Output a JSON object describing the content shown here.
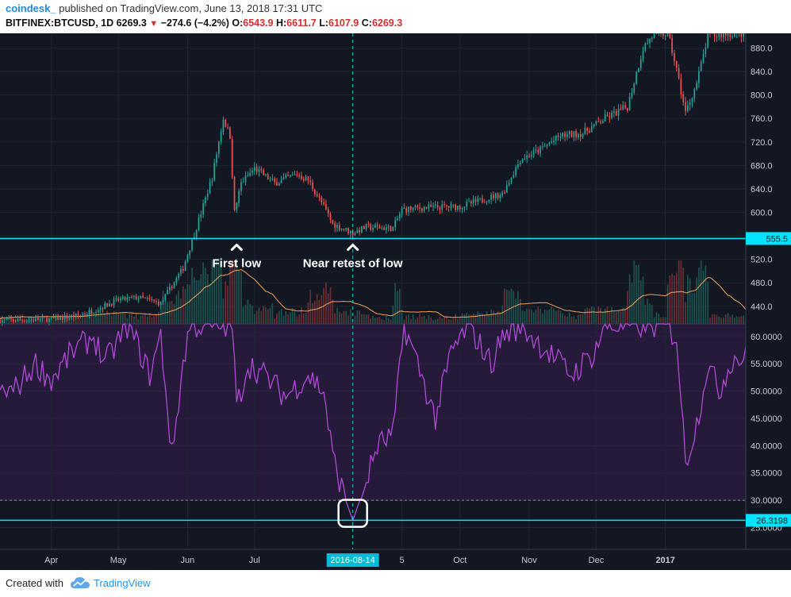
{
  "header": {
    "author": "coindesk_",
    "published": "published on TradingView.com, June 13, 2018 17:31 UTC",
    "symbol": "BITFINEX:BTCUSD, 1D",
    "last": "6269.3",
    "change_arrow": "▼",
    "change": "−274.6 (−4.2%)",
    "o_label": "O:",
    "o": "6543.9",
    "h_label": "H:",
    "h": "6611.7",
    "l_label": "L:",
    "l": "6107.9",
    "c_label": "C:",
    "c": "6269.3"
  },
  "footer": {
    "created_with": "Created with",
    "brand": "TradingView",
    "logo_icon": "tradingview-cloud-icon"
  },
  "colors": {
    "background": "#131722",
    "rsi_band": "#251a3a",
    "up": "#26a69a",
    "down": "#ef5350",
    "rsi_line": "#b04ad6",
    "support_line": "#00e5ff",
    "axis_text": "#c7cad4",
    "volume_ma": "#f0a35a"
  },
  "chart_data": {
    "type": "line",
    "price_panel": {
      "ylim": [
        410,
        905
      ],
      "yticks": [
        440,
        480,
        520,
        560,
        600,
        640,
        680,
        720,
        760,
        800,
        840,
        880
      ],
      "tick_labels": [
        "440.0",
        "480.0",
        "520.0",
        "560.0",
        "600.0",
        "640.0",
        "680.0",
        "720.0",
        "760.0",
        "800.0",
        "840.0",
        "880.0"
      ],
      "support": 555.5,
      "support_label": "555.5",
      "close_path": [
        {
          "date": "2016-03-15",
          "close": 416
        },
        {
          "date": "2016-04-01",
          "close": 418
        },
        {
          "date": "2016-04-15",
          "close": 425
        },
        {
          "date": "2016-05-01",
          "close": 451
        },
        {
          "date": "2016-05-10",
          "close": 455
        },
        {
          "date": "2016-05-20",
          "close": 445
        },
        {
          "date": "2016-05-30",
          "close": 505
        },
        {
          "date": "2016-06-05",
          "close": 575
        },
        {
          "date": "2016-06-12",
          "close": 660
        },
        {
          "date": "2016-06-17",
          "close": 760
        },
        {
          "date": "2016-06-20",
          "close": 730
        },
        {
          "date": "2016-06-22",
          "close": 600
        },
        {
          "date": "2016-06-25",
          "close": 650
        },
        {
          "date": "2016-07-01",
          "close": 675
        },
        {
          "date": "2016-07-10",
          "close": 650
        },
        {
          "date": "2016-07-20",
          "close": 665
        },
        {
          "date": "2016-07-25",
          "close": 655
        },
        {
          "date": "2016-08-01",
          "close": 610
        },
        {
          "date": "2016-08-05",
          "close": 580
        },
        {
          "date": "2016-08-14",
          "close": 565
        },
        {
          "date": "2016-08-20",
          "close": 575
        },
        {
          "date": "2016-09-01",
          "close": 573
        },
        {
          "date": "2016-09-05",
          "close": 605
        },
        {
          "date": "2016-09-15",
          "close": 608
        },
        {
          "date": "2016-10-01",
          "close": 610
        },
        {
          "date": "2016-10-10",
          "close": 620
        },
        {
          "date": "2016-10-20",
          "close": 632
        },
        {
          "date": "2016-10-28",
          "close": 690
        },
        {
          "date": "2016-11-05",
          "close": 705
        },
        {
          "date": "2016-11-15",
          "close": 730
        },
        {
          "date": "2016-11-25",
          "close": 735
        },
        {
          "date": "2016-12-05",
          "close": 760
        },
        {
          "date": "2016-12-15",
          "close": 780
        },
        {
          "date": "2016-12-22",
          "close": 880
        },
        {
          "date": "2016-12-26",
          "close": 900
        },
        {
          "date": "2017-01-02",
          "close": 905
        },
        {
          "date": "2017-01-05",
          "close": 860
        },
        {
          "date": "2017-01-10",
          "close": 770
        },
        {
          "date": "2017-01-15",
          "close": 820
        },
        {
          "date": "2017-01-20",
          "close": 900
        },
        {
          "date": "2017-01-31",
          "close": 905
        }
      ]
    },
    "rsi_panel": {
      "ylim": [
        21,
        62.3
      ],
      "yticks": [
        25,
        30,
        35,
        40,
        45,
        50,
        55,
        60
      ],
      "tick_labels": [
        "25.0000",
        "30.0000",
        "35.0000",
        "40.0000",
        "45.0000",
        "50.0000",
        "55.0000",
        "60.0000"
      ],
      "band": [
        30,
        70
      ],
      "support": 26.3198,
      "support_label": "26.3198",
      "rsi": [
        {
          "date": "2016-03-15",
          "value": 50
        },
        {
          "date": "2016-03-25",
          "value": 55
        },
        {
          "date": "2016-04-01",
          "value": 52
        },
        {
          "date": "2016-04-10",
          "value": 57
        },
        {
          "date": "2016-04-20",
          "value": 60
        },
        {
          "date": "2016-04-25",
          "value": 55
        },
        {
          "date": "2016-05-05",
          "value": 62
        },
        {
          "date": "2016-05-10",
          "value": 58
        },
        {
          "date": "2016-05-15",
          "value": 53
        },
        {
          "date": "2016-05-20",
          "value": 60
        },
        {
          "date": "2016-05-25",
          "value": 38
        },
        {
          "date": "2016-05-30",
          "value": 55
        },
        {
          "date": "2016-06-02",
          "value": 62
        },
        {
          "date": "2016-06-21",
          "value": 62
        },
        {
          "date": "2016-06-23",
          "value": 47
        },
        {
          "date": "2016-06-28",
          "value": 55
        },
        {
          "date": "2016-07-05",
          "value": 53
        },
        {
          "date": "2016-07-15",
          "value": 49
        },
        {
          "date": "2016-07-25",
          "value": 53
        },
        {
          "date": "2016-08-01",
          "value": 50
        },
        {
          "date": "2016-08-05",
          "value": 38
        },
        {
          "date": "2016-08-10",
          "value": 31
        },
        {
          "date": "2016-08-14",
          "value": 26.3
        },
        {
          "date": "2016-08-18",
          "value": 31
        },
        {
          "date": "2016-08-25",
          "value": 40
        },
        {
          "date": "2016-09-01",
          "value": 42
        },
        {
          "date": "2016-09-06",
          "value": 62
        },
        {
          "date": "2016-09-12",
          "value": 55
        },
        {
          "date": "2016-09-20",
          "value": 45
        },
        {
          "date": "2016-09-27",
          "value": 57
        },
        {
          "date": "2016-10-05",
          "value": 62
        },
        {
          "date": "2016-10-15",
          "value": 55
        },
        {
          "date": "2016-10-20",
          "value": 60
        },
        {
          "date": "2016-10-28",
          "value": 62
        },
        {
          "date": "2016-11-10",
          "value": 57
        },
        {
          "date": "2016-11-20",
          "value": 53
        },
        {
          "date": "2016-11-30",
          "value": 57
        },
        {
          "date": "2016-12-05",
          "value": 62
        },
        {
          "date": "2016-12-31",
          "value": 62
        },
        {
          "date": "2017-01-06",
          "value": 60
        },
        {
          "date": "2017-01-10",
          "value": 37
        },
        {
          "date": "2017-01-15",
          "value": 44
        },
        {
          "date": "2017-01-20",
          "value": 55
        },
        {
          "date": "2017-01-25",
          "value": 50
        },
        {
          "date": "2017-01-31",
          "value": 56
        }
      ]
    },
    "x_axis": {
      "range": [
        "2016-03-09",
        "2017-02-06"
      ],
      "ticks": [
        {
          "date": "2016-04-01",
          "label": "Apr"
        },
        {
          "date": "2016-05-01",
          "label": "May"
        },
        {
          "date": "2016-06-01",
          "label": "Jun"
        },
        {
          "date": "2016-07-01",
          "label": "Jul"
        },
        {
          "date": "2016-09-05",
          "label": "5"
        },
        {
          "date": "2016-10-01",
          "label": "Oct"
        },
        {
          "date": "2016-11-01",
          "label": "Nov"
        },
        {
          "date": "2016-12-01",
          "label": "Dec"
        },
        {
          "date": "2017-01-01",
          "label": "2017"
        }
      ],
      "cursor": {
        "date": "2016-08-14",
        "label": "2016-08-14"
      }
    },
    "annotations": [
      {
        "name": "first-low",
        "date": "2016-06-23",
        "label": "First low"
      },
      {
        "name": "near-retest",
        "date": "2016-08-14",
        "label": "Near retest of low"
      }
    ],
    "rsi_box": {
      "date": "2016-08-14",
      "value": 27.6
    }
  }
}
